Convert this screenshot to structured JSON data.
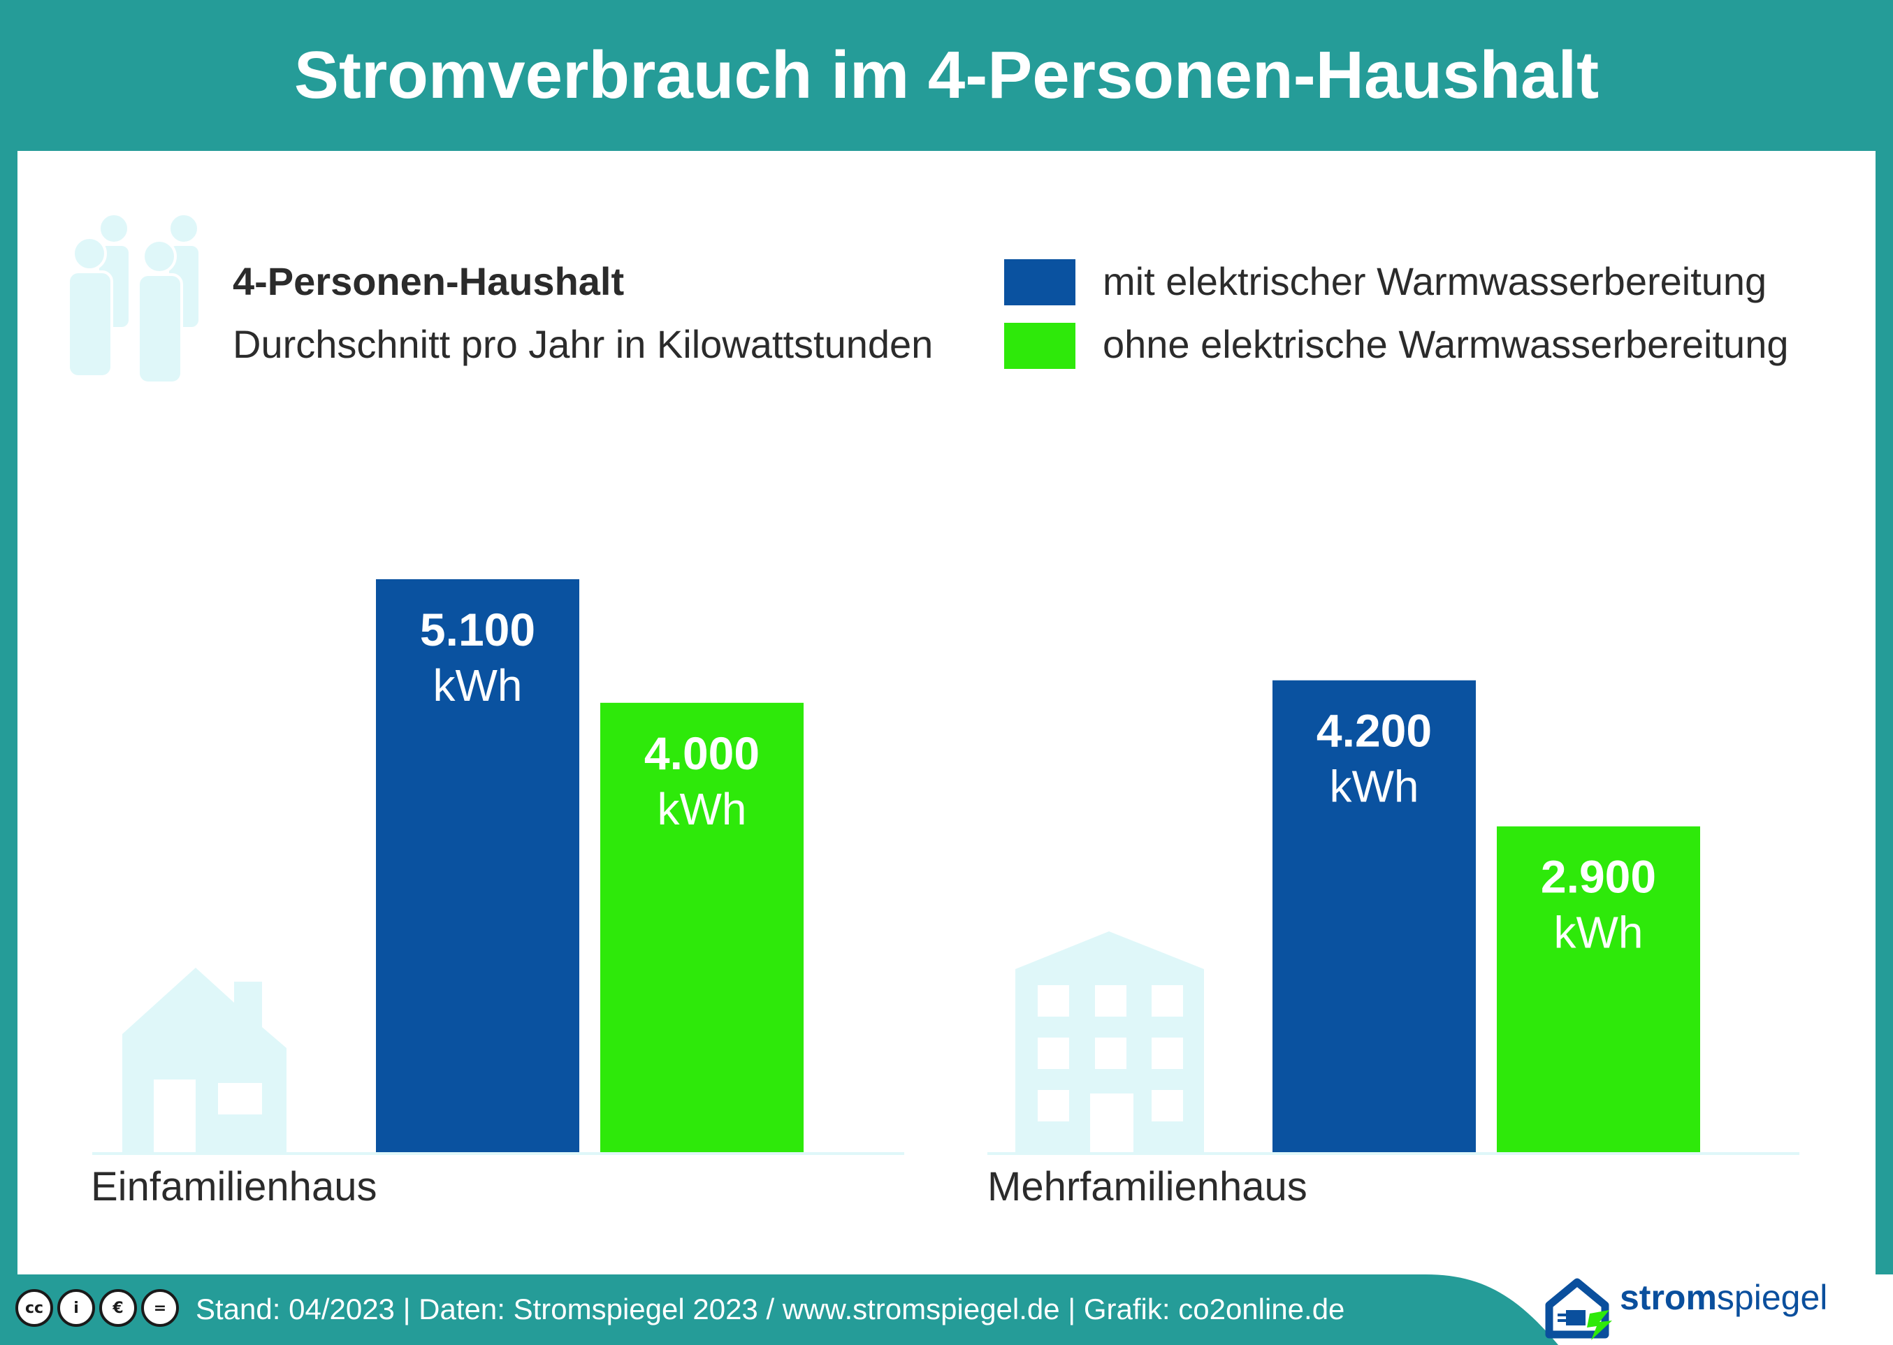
{
  "title": "Stromverbrauch im 4-Personen-Haushalt",
  "legend": {
    "heading": "4-Personen-Haushalt",
    "subheading": "Durchschnitt pro Jahr in Kilowattstunden",
    "items": [
      {
        "label": "mit elektrischer Warmwasserbereitung",
        "color": "#0a52a0"
      },
      {
        "label": "ohne elektrische Warmwasserbereitung",
        "color": "#2ee90a"
      }
    ]
  },
  "chart_data": {
    "type": "bar",
    "categories": [
      "Einfamilienhaus",
      "Mehrfamilienhaus"
    ],
    "unit": "kWh",
    "series": [
      {
        "name": "mit elektrischer Warmwasserbereitung",
        "values": [
          5100,
          4200
        ],
        "labels": [
          "5.100",
          "4.200"
        ],
        "color": "#0a52a0"
      },
      {
        "name": "ohne elektrische Warmwasserbereitung",
        "values": [
          4000,
          2900
        ],
        "labels": [
          "4.000",
          "2.900"
        ],
        "color": "#2ee90a"
      }
    ]
  },
  "footer": {
    "text": "Stand: 04/2023  |  Daten: Stromspiegel 2023 / www.stromspiegel.de  |  Grafik: co2online.de",
    "license_icons": [
      "cc",
      "by",
      "nc",
      "nd"
    ]
  },
  "logo": {
    "part1": "strom",
    "part2": "spiegel"
  },
  "colors": {
    "teal": "#259c98",
    "icon_light": "#dff7f9",
    "text": "#2b2b2b"
  }
}
